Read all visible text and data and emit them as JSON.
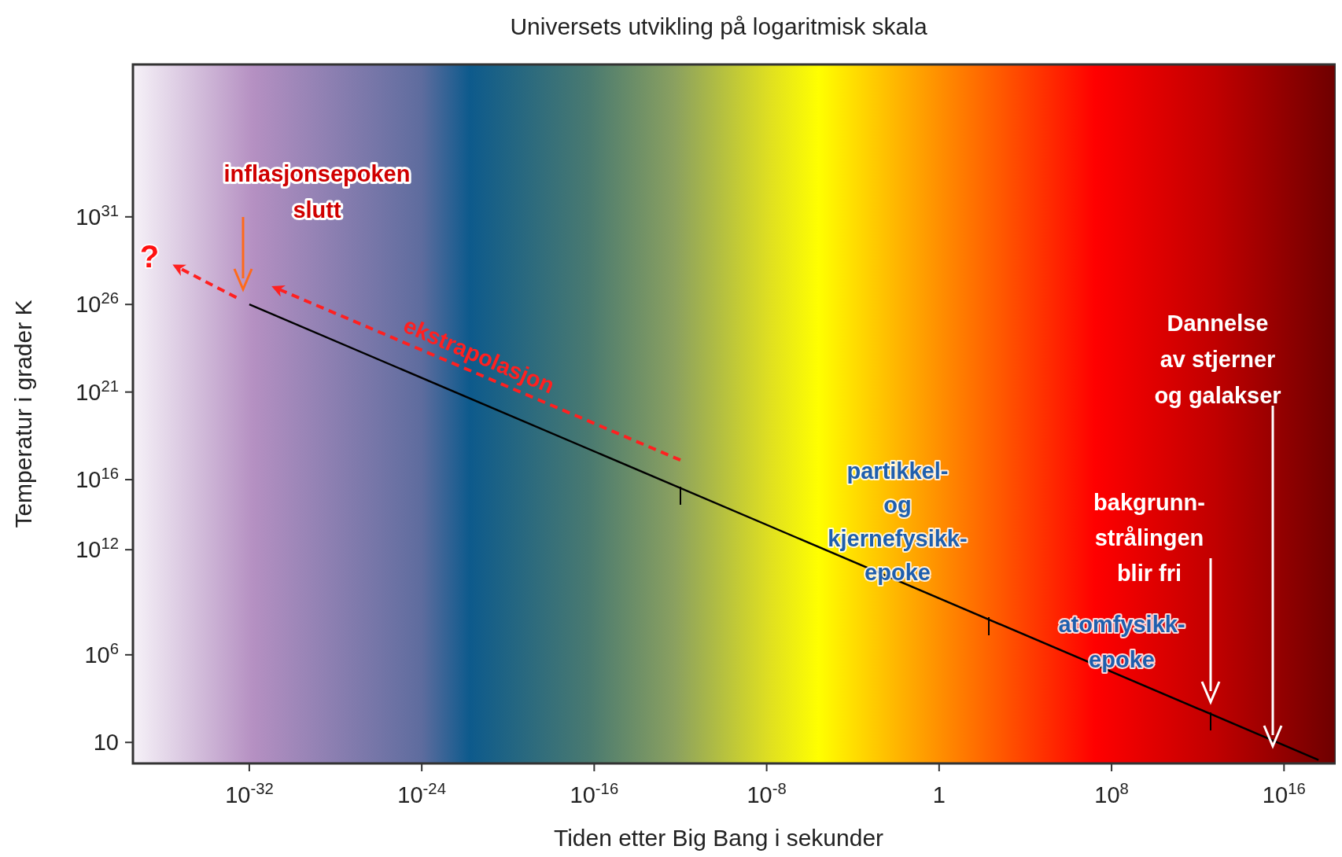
{
  "chart_data": {
    "type": "line",
    "title": "Universets utvikling på logaritmisk skala",
    "xlabel": "Tiden etter Big Bang i sekunder",
    "ylabel": "Temperatur i grader K",
    "log": "xy",
    "grid": false,
    "xlim": [
      4e-38,
      2.5e+18
    ],
    "ylim": [
      0.63,
      5e+39
    ],
    "xticks": [
      {
        "value": 1e-32,
        "label": "10$^{-32}$"
      },
      {
        "value": 1e-24,
        "label": "10$^{-24}$"
      },
      {
        "value": 1e-16,
        "label": "10$^{-16}$"
      },
      {
        "value": 1e-08,
        "label": "10$^{-8}$"
      },
      1,
      {
        "value": 100000000.0,
        "label": "10$^{8}$"
      },
      {
        "value": 1e+16,
        "label": "10$^{16}$"
      }
    ],
    "yticks": [
      10,
      {
        "value": 1000000.0,
        "label": "10$^{6}$"
      },
      {
        "value": 1000000000000.0,
        "label": "10$^{12}$"
      },
      {
        "value": 1e+16,
        "label": "10$^{16}$"
      },
      {
        "value": 1e+21,
        "label": "10$^{21}$"
      },
      {
        "value": 1e+26,
        "label": "10$^{26}$"
      },
      {
        "value": 1e+31,
        "label": "10$^{31}$"
      }
    ],
    "series": [
      {
        "color": "#000000",
        "x": [
          1e-32,
          4e+17
        ],
        "values": [
          1e+26,
          1
        ],
        "line_style": "solid"
      },
      {
        "color": "#ff2020",
        "x": [
          1e-12,
          2e-31
        ],
        "values": [
          1.3e+17,
          8e+26
        ],
        "line_style": "dashed"
      },
      {
        "color": "#ff2020",
        "x": [
          2.5e-33,
          5e-36
        ],
        "values": [
          2.5e+26,
          1.3e+28
        ],
        "line_style": "dashed"
      }
    ],
    "annotations": [
      "?",
      "inflasjonsepoken\nslutt",
      "ekstrapolasjon",
      "partikkel-\nog\nkjernefysikk-\nepoke",
      "atomfysikk-\nepoke",
      "bakgrunn-\nstrålingen\nblir fri",
      "Dannelse\nav stjerner\nog galakser"
    ]
  }
}
